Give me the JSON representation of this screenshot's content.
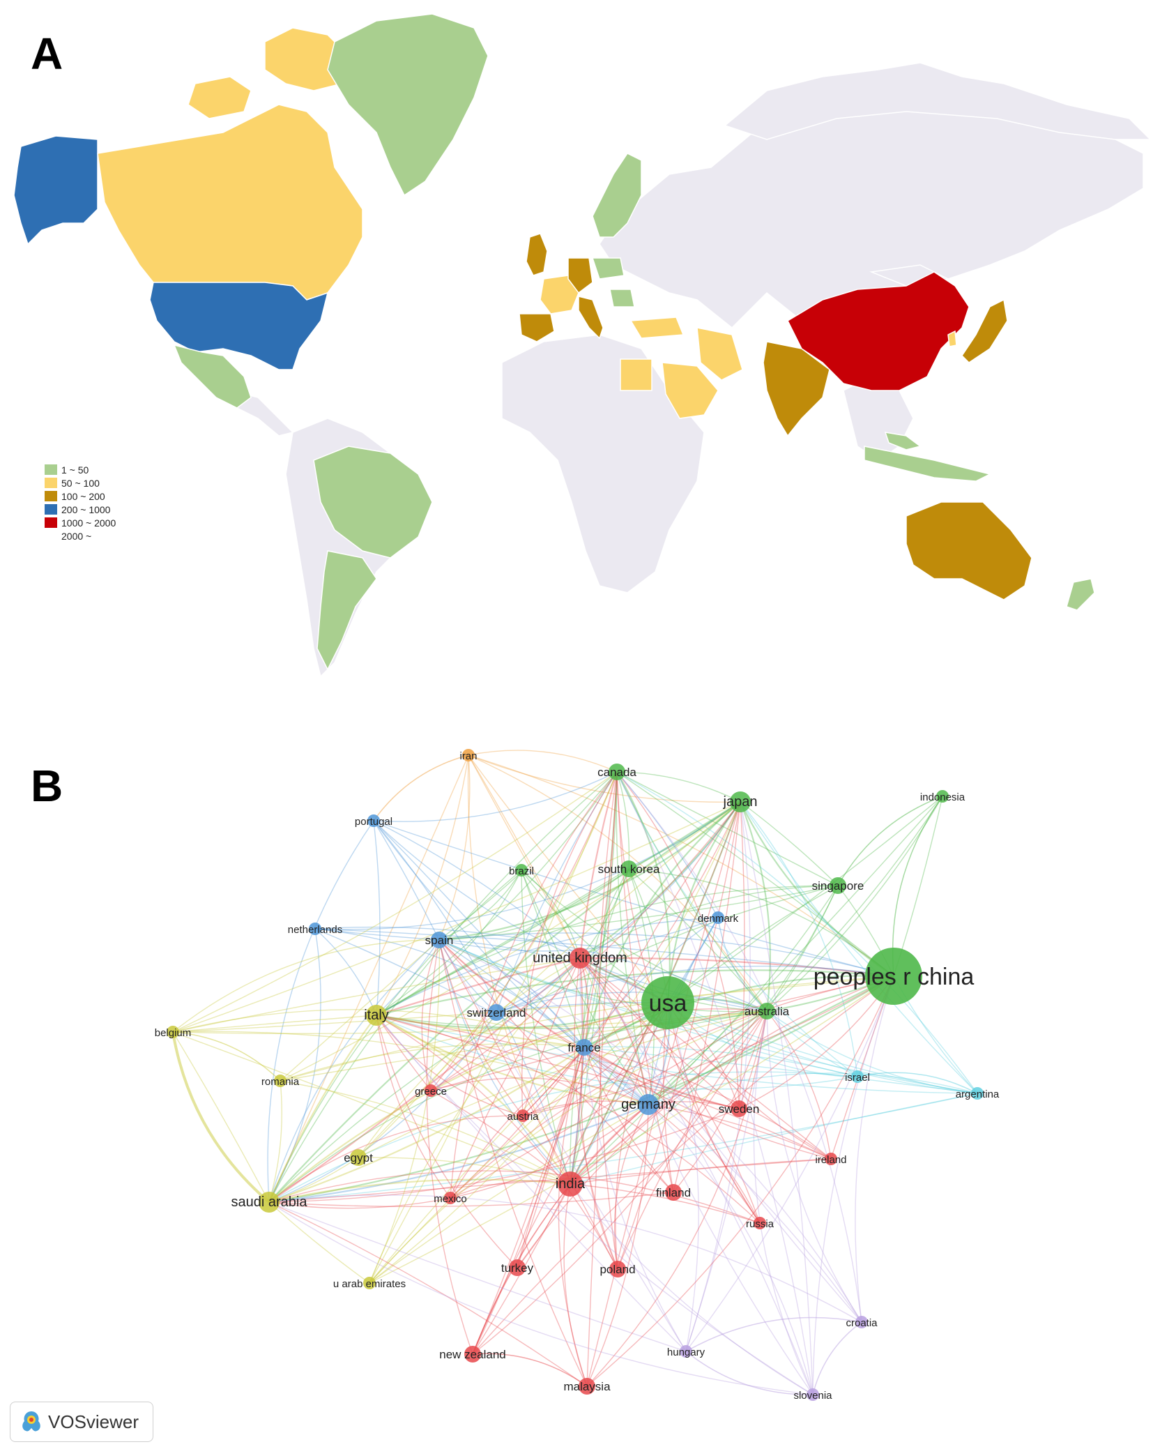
{
  "panel_a": {
    "letter": "A",
    "colors": {
      "no_data": "#ebe9f1",
      "1_50": "#a9cf8f",
      "50_100": "#fbd46b",
      "100_200": "#bf8b0a",
      "200_1000": "#2e6fb3",
      "1000_2000": "#c70006"
    },
    "legend": [
      {
        "label": "1 ~ 50",
        "color": "#a9cf8f"
      },
      {
        "label": "50 ~ 100",
        "color": "#fbd46b"
      },
      {
        "label": "100 ~ 200",
        "color": "#bf8b0a"
      },
      {
        "label": "200 ~ 1000",
        "color": "#2e6fb3"
      },
      {
        "label": "1000 ~ 2000",
        "color": "#c70006"
      },
      {
        "label": "2000 ~",
        "color": "#ffffff"
      }
    ]
  },
  "panel_b": {
    "letter": "B",
    "logo_text": "VOSviewer",
    "cluster_colors": {
      "green": "#4fb84a",
      "red": "#e8484b",
      "blue": "#4f97d8",
      "yellow": "#c9c93a",
      "orange": "#f0a040",
      "cyan": "#5fd0e0",
      "purple": "#b8a0e0"
    },
    "nodes": [
      {
        "id": "iran",
        "label": "iran",
        "cluster": "orange",
        "weight": 1
      },
      {
        "id": "canada",
        "label": "canada",
        "cluster": "green",
        "weight": 2
      },
      {
        "id": "japan",
        "label": "japan",
        "cluster": "green",
        "weight": 3
      },
      {
        "id": "indonesia",
        "label": "indonesia",
        "cluster": "green",
        "weight": 1
      },
      {
        "id": "portugal",
        "label": "portugal",
        "cluster": "blue",
        "weight": 1
      },
      {
        "id": "brazil",
        "label": "brazil",
        "cluster": "green",
        "weight": 1
      },
      {
        "id": "south-korea",
        "label": "south korea",
        "cluster": "green",
        "weight": 2
      },
      {
        "id": "singapore",
        "label": "singapore",
        "cluster": "green",
        "weight": 2
      },
      {
        "id": "denmark",
        "label": "denmark",
        "cluster": "blue",
        "weight": 1
      },
      {
        "id": "netherlands",
        "label": "netherlands",
        "cluster": "blue",
        "weight": 1
      },
      {
        "id": "spain",
        "label": "spain",
        "cluster": "blue",
        "weight": 2
      },
      {
        "id": "united-kingdom",
        "label": "united kingdom",
        "cluster": "red",
        "weight": 3
      },
      {
        "id": "peoples-r-china",
        "label": "peoples r china",
        "cluster": "green",
        "weight": 10
      },
      {
        "id": "usa",
        "label": "usa",
        "cluster": "green",
        "weight": 9
      },
      {
        "id": "australia",
        "label": "australia",
        "cluster": "green",
        "weight": 2
      },
      {
        "id": "italy",
        "label": "italy",
        "cluster": "yellow",
        "weight": 3
      },
      {
        "id": "switzerland",
        "label": "switzerland",
        "cluster": "blue",
        "weight": 2
      },
      {
        "id": "belgium",
        "label": "belgium",
        "cluster": "yellow",
        "weight": 1
      },
      {
        "id": "france",
        "label": "france",
        "cluster": "blue",
        "weight": 2
      },
      {
        "id": "israel",
        "label": "israel",
        "cluster": "cyan",
        "weight": 1
      },
      {
        "id": "argentina",
        "label": "argentina",
        "cluster": "cyan",
        "weight": 1
      },
      {
        "id": "romania",
        "label": "romania",
        "cluster": "yellow",
        "weight": 1
      },
      {
        "id": "greece",
        "label": "greece",
        "cluster": "red",
        "weight": 1
      },
      {
        "id": "germany",
        "label": "germany",
        "cluster": "blue",
        "weight": 3
      },
      {
        "id": "sweden",
        "label": "sweden",
        "cluster": "red",
        "weight": 2
      },
      {
        "id": "austria",
        "label": "austria",
        "cluster": "red",
        "weight": 1
      },
      {
        "id": "ireland",
        "label": "ireland",
        "cluster": "red",
        "weight": 1
      },
      {
        "id": "egypt",
        "label": "egypt",
        "cluster": "yellow",
        "weight": 2
      },
      {
        "id": "india",
        "label": "india",
        "cluster": "red",
        "weight": 4
      },
      {
        "id": "finland",
        "label": "finland",
        "cluster": "red",
        "weight": 2
      },
      {
        "id": "saudi-arabia",
        "label": "saudi arabia",
        "cluster": "yellow",
        "weight": 3
      },
      {
        "id": "mexico",
        "label": "mexico",
        "cluster": "red",
        "weight": 1
      },
      {
        "id": "russia",
        "label": "russia",
        "cluster": "red",
        "weight": 1
      },
      {
        "id": "turkey",
        "label": "turkey",
        "cluster": "red",
        "weight": 2
      },
      {
        "id": "poland",
        "label": "poland",
        "cluster": "red",
        "weight": 2
      },
      {
        "id": "u-arab-emirates",
        "label": "u arab emirates",
        "cluster": "yellow",
        "weight": 1
      },
      {
        "id": "croatia",
        "label": "croatia",
        "cluster": "purple",
        "weight": 1
      },
      {
        "id": "new-zealand",
        "label": "new zealand",
        "cluster": "red",
        "weight": 2
      },
      {
        "id": "hungary",
        "label": "hungary",
        "cluster": "purple",
        "weight": 1
      },
      {
        "id": "malaysia",
        "label": "malaysia",
        "cluster": "red",
        "weight": 2
      },
      {
        "id": "slovenia",
        "label": "slovenia",
        "cluster": "purple",
        "weight": 1
      }
    ]
  }
}
